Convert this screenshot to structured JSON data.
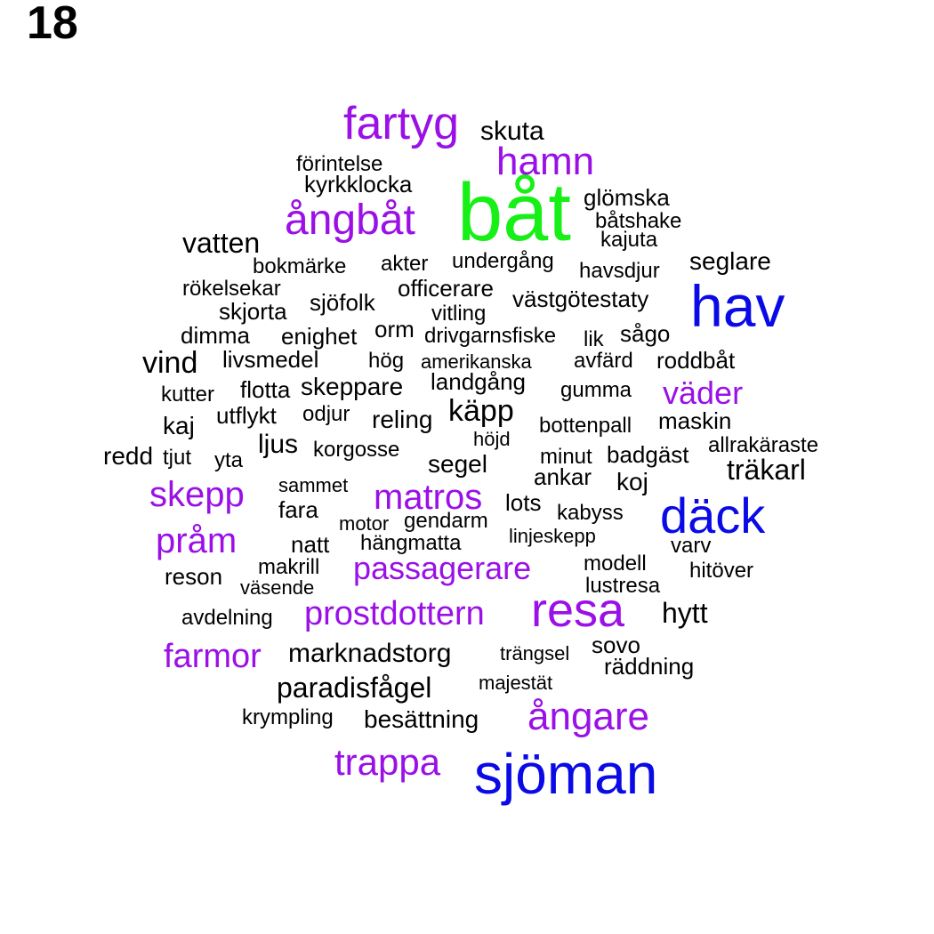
{
  "page_number": "18",
  "palette": {
    "black": "#000000",
    "purple": "#9a10e6",
    "blue": "#0a0ae6",
    "green": "#16f016"
  },
  "words": [
    {
      "text": "båt",
      "color": "green",
      "weight": 10
    },
    {
      "text": "hav",
      "color": "blue",
      "weight": 8
    },
    {
      "text": "sjöman",
      "color": "blue",
      "weight": 8
    },
    {
      "text": "däck",
      "color": "blue",
      "weight": 7
    },
    {
      "text": "resa",
      "color": "purple",
      "weight": 7
    },
    {
      "text": "fartyg",
      "color": "purple",
      "weight": 6
    },
    {
      "text": "ångbåt",
      "color": "purple",
      "weight": 6
    },
    {
      "text": "ångare",
      "color": "purple",
      "weight": 5
    },
    {
      "text": "trappa",
      "color": "purple",
      "weight": 5
    },
    {
      "text": "hamn",
      "color": "purple",
      "weight": 5
    },
    {
      "text": "skepp",
      "color": "purple",
      "weight": 5
    },
    {
      "text": "pråm",
      "color": "purple",
      "weight": 5
    },
    {
      "text": "matros",
      "color": "purple",
      "weight": 5
    },
    {
      "text": "passagerare",
      "color": "purple",
      "weight": 4
    },
    {
      "text": "prostdottern",
      "color": "purple",
      "weight": 4
    },
    {
      "text": "väder",
      "color": "purple",
      "weight": 4
    },
    {
      "text": "farmor",
      "color": "purple",
      "weight": 4
    },
    {
      "text": "vatten",
      "color": "black",
      "weight": 3
    },
    {
      "text": "vind",
      "color": "black",
      "weight": 3
    },
    {
      "text": "träkarl",
      "color": "black",
      "weight": 3
    },
    {
      "text": "käpp",
      "color": "black",
      "weight": 3
    },
    {
      "text": "hytt",
      "color": "black",
      "weight": 3
    },
    {
      "text": "paradisfågel",
      "color": "black",
      "weight": 3
    },
    {
      "text": "marknadstorg",
      "color": "black",
      "weight": 3
    },
    {
      "text": "skuta",
      "color": "black",
      "weight": 2
    },
    {
      "text": "seglare",
      "color": "black",
      "weight": 2
    },
    {
      "text": "segel",
      "color": "black",
      "weight": 2
    },
    {
      "text": "koj",
      "color": "black",
      "weight": 2
    },
    {
      "text": "ljus",
      "color": "black",
      "weight": 2
    },
    {
      "text": "kaj",
      "color": "black",
      "weight": 2
    },
    {
      "text": "reling",
      "color": "black",
      "weight": 2
    },
    {
      "text": "redd",
      "color": "black",
      "weight": 2
    },
    {
      "text": "besättning",
      "color": "black",
      "weight": 2
    },
    {
      "text": "skeppare",
      "color": "black",
      "weight": 2
    },
    {
      "text": "landgång",
      "color": "black",
      "weight": 2
    },
    {
      "text": "livsmedel",
      "color": "black",
      "weight": 2
    },
    {
      "text": "räddning",
      "color": "black",
      "weight": 2
    },
    {
      "text": "reson",
      "color": "black",
      "weight": 2
    },
    {
      "text": "natt",
      "color": "black",
      "weight": 2
    },
    {
      "text": "fara",
      "color": "black",
      "weight": 2
    },
    {
      "text": "badgäst",
      "color": "black",
      "weight": 2
    },
    {
      "text": "maskin",
      "color": "black",
      "weight": 2
    },
    {
      "text": "glömska",
      "color": "black",
      "weight": 1
    },
    {
      "text": "förintelse",
      "color": "black",
      "weight": 1
    },
    {
      "text": "kyrkklocka",
      "color": "black",
      "weight": 1
    },
    {
      "text": "båtshake",
      "color": "black",
      "weight": 1
    },
    {
      "text": "kajuta",
      "color": "black",
      "weight": 1
    },
    {
      "text": "undergång",
      "color": "black",
      "weight": 1
    },
    {
      "text": "akter",
      "color": "black",
      "weight": 1
    },
    {
      "text": "bokmärke",
      "color": "black",
      "weight": 1
    },
    {
      "text": "havsdjur",
      "color": "black",
      "weight": 1
    },
    {
      "text": "rökelsekar",
      "color": "black",
      "weight": 1
    },
    {
      "text": "officerare",
      "color": "black",
      "weight": 1
    },
    {
      "text": "västgötestaty",
      "color": "black",
      "weight": 1
    },
    {
      "text": "skjorta",
      "color": "black",
      "weight": 1
    },
    {
      "text": "sjöfolk",
      "color": "black",
      "weight": 1
    },
    {
      "text": "vitling",
      "color": "black",
      "weight": 1
    },
    {
      "text": "dimma",
      "color": "black",
      "weight": 1
    },
    {
      "text": "enighet",
      "color": "black",
      "weight": 1
    },
    {
      "text": "orm",
      "color": "black",
      "weight": 1
    },
    {
      "text": "drivgarnsfiske",
      "color": "black",
      "weight": 1
    },
    {
      "text": "lik",
      "color": "black",
      "weight": 1
    },
    {
      "text": "sågo",
      "color": "black",
      "weight": 1
    },
    {
      "text": "hög",
      "color": "black",
      "weight": 1
    },
    {
      "text": "amerikanska",
      "color": "black",
      "weight": 1
    },
    {
      "text": "avfärd",
      "color": "black",
      "weight": 1
    },
    {
      "text": "roddbåt",
      "color": "black",
      "weight": 1
    },
    {
      "text": "kutter",
      "color": "black",
      "weight": 1
    },
    {
      "text": "flotta",
      "color": "black",
      "weight": 1
    },
    {
      "text": "gumma",
      "color": "black",
      "weight": 1
    },
    {
      "text": "utflykt",
      "color": "black",
      "weight": 1
    },
    {
      "text": "odjur",
      "color": "black",
      "weight": 1
    },
    {
      "text": "bottenpall",
      "color": "black",
      "weight": 1
    },
    {
      "text": "höjd",
      "color": "black",
      "weight": 1
    },
    {
      "text": "allrakäraste",
      "color": "black",
      "weight": 1
    },
    {
      "text": "korgosse",
      "color": "black",
      "weight": 1
    },
    {
      "text": "tjut",
      "color": "black",
      "weight": 1
    },
    {
      "text": "yta",
      "color": "black",
      "weight": 1
    },
    {
      "text": "minut",
      "color": "black",
      "weight": 1
    },
    {
      "text": "ankar",
      "color": "black",
      "weight": 1
    },
    {
      "text": "sammet",
      "color": "black",
      "weight": 1
    },
    {
      "text": "lots",
      "color": "black",
      "weight": 1
    },
    {
      "text": "kabyss",
      "color": "black",
      "weight": 1
    },
    {
      "text": "motor",
      "color": "black",
      "weight": 1
    },
    {
      "text": "gendarm",
      "color": "black",
      "weight": 1
    },
    {
      "text": "linjeskepp",
      "color": "black",
      "weight": 1
    },
    {
      "text": "hängmatta",
      "color": "black",
      "weight": 1
    },
    {
      "text": "varv",
      "color": "black",
      "weight": 1
    },
    {
      "text": "makrill",
      "color": "black",
      "weight": 1
    },
    {
      "text": "modell",
      "color": "black",
      "weight": 1
    },
    {
      "text": "hitöver",
      "color": "black",
      "weight": 1
    },
    {
      "text": "väsende",
      "color": "black",
      "weight": 1
    },
    {
      "text": "lustresa",
      "color": "black",
      "weight": 1
    },
    {
      "text": "avdelning",
      "color": "black",
      "weight": 1
    },
    {
      "text": "trängsel",
      "color": "black",
      "weight": 1
    },
    {
      "text": "sovo",
      "color": "black",
      "weight": 1
    },
    {
      "text": "majestät",
      "color": "black",
      "weight": 1
    },
    {
      "text": "krympling",
      "color": "black",
      "weight": 1
    }
  ]
}
